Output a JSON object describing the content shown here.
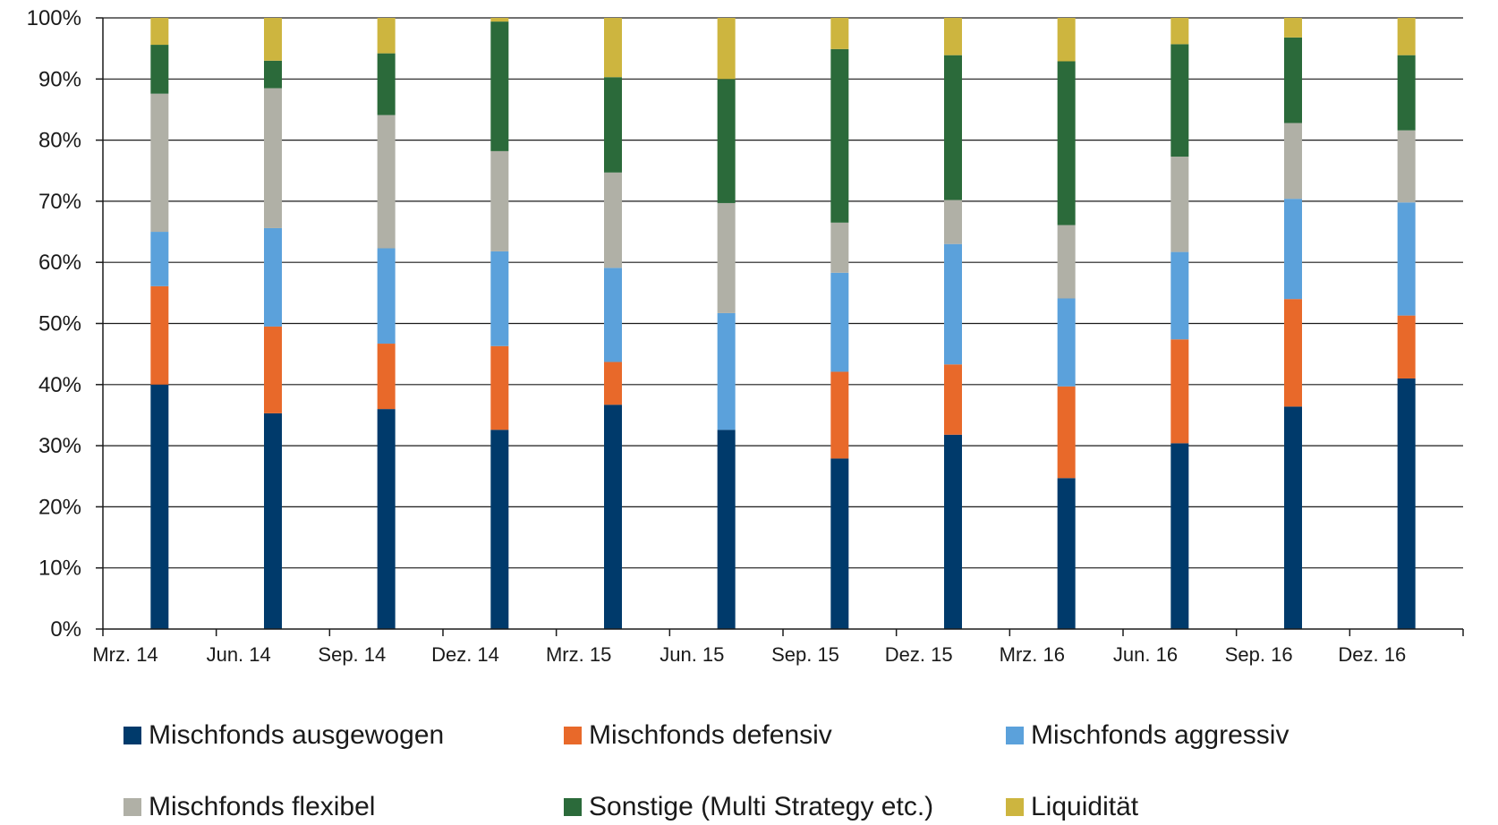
{
  "chart_data": {
    "type": "bar",
    "stacked": true,
    "percent": true,
    "categories": [
      "Mrz. 14",
      "Jun. 14",
      "Sep. 14",
      "Dez. 14",
      "Mrz. 15",
      "Jun. 15",
      "Sep. 15",
      "Dez. 15",
      "Mrz. 16",
      "Jun. 16",
      "Sep. 16",
      "Dez. 16"
    ],
    "y_ticks": [
      "0%",
      "10%",
      "20%",
      "30%",
      "40%",
      "50%",
      "60%",
      "70%",
      "80%",
      "90%",
      "100%"
    ],
    "ylim": [
      0,
      100
    ],
    "grid": true,
    "legend_position": "bottom",
    "series": [
      {
        "name": "Mischfonds ausgewogen",
        "color": "#003a6b",
        "values": [
          40.0,
          35.3,
          36.0,
          32.6,
          36.7,
          32.6,
          27.9,
          31.8,
          24.7,
          30.4,
          36.4,
          41.0
        ]
      },
      {
        "name": "Mischfonds defensiv",
        "color": "#e8692a",
        "values": [
          16.1,
          14.2,
          10.7,
          13.7,
          7.0,
          0.0,
          14.2,
          11.5,
          15.0,
          17.0,
          17.6,
          10.3
        ]
      },
      {
        "name": "Mischfonds aggressiv",
        "color": "#5ba1db",
        "values": [
          8.9,
          16.1,
          15.6,
          15.5,
          15.4,
          19.1,
          16.2,
          19.7,
          14.4,
          14.3,
          16.4,
          18.5
        ]
      },
      {
        "name": "Mischfonds flexibel",
        "color": "#b0b0a6",
        "values": [
          22.6,
          22.9,
          21.8,
          16.4,
          15.6,
          18.0,
          8.2,
          7.2,
          12.0,
          15.6,
          12.4,
          11.8
        ]
      },
      {
        "name": "Sonstige (Multi Strategy etc.)",
        "color": "#2b6a3a",
        "values": [
          8.0,
          4.5,
          10.1,
          21.2,
          15.6,
          20.3,
          28.4,
          23.7,
          26.8,
          18.4,
          14.0,
          12.3
        ]
      },
      {
        "name": "Liquidität",
        "color": "#cdb53f",
        "values": [
          4.4,
          7.0,
          5.8,
          0.6,
          9.7,
          10.0,
          5.1,
          6.1,
          7.1,
          4.3,
          3.2,
          6.1
        ]
      }
    ]
  }
}
